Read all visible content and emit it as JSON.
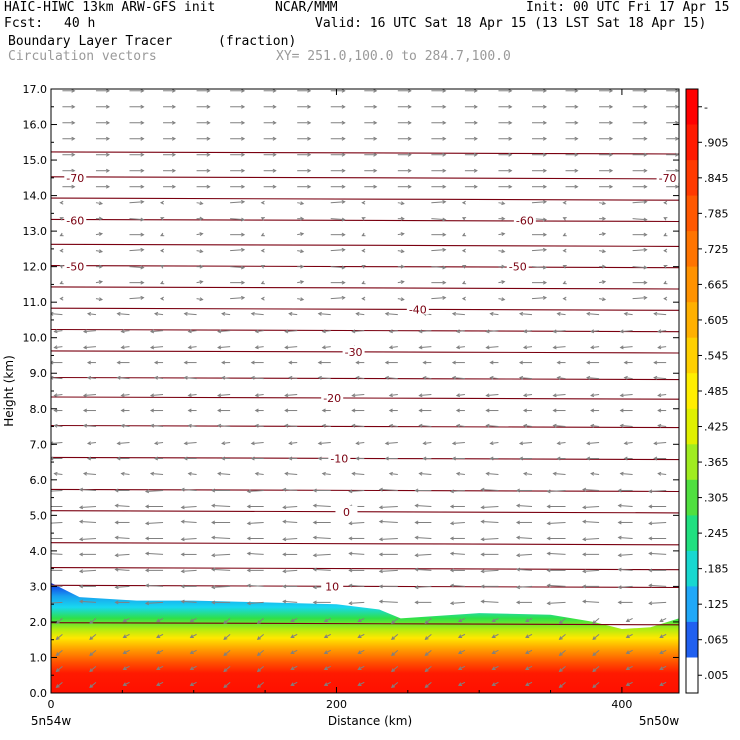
{
  "header": {
    "model_line": "HAIC-HIWC 13km ARW-GFS init",
    "org": "NCAR/MMM",
    "init": "Init: 00 UTC Fri 17 Apr 15",
    "fcst_label": "Fcst:",
    "fcst_value": "40 h",
    "valid": "Valid: 16 UTC Sat 18 Apr 15 (13 LST Sat 18 Apr 15)",
    "field": "Boundary Layer Tracer",
    "field_units": "(fraction)",
    "overlay": "Circulation vectors",
    "xy": "XY= 251.0,100.0 to 284.7,100.0"
  },
  "colors": {
    "fill_high": "#ff1a00",
    "fill_orange": "#ff7a00",
    "fill_yellow": "#ffe800",
    "fill_green": "#2ee04a",
    "fill_cyan": "#18d8f0",
    "fill_blue": "#1030e8",
    "contour": "#7a0010",
    "vector": "#808080"
  },
  "chart_data": {
    "type": "cross-section",
    "title": "Boundary Layer Tracer",
    "xlabel": "Distance (km)",
    "ylabel": "Height (km)",
    "xlim": [
      0,
      440
    ],
    "ylim": [
      0,
      17
    ],
    "x_ticks": [
      {
        "value": 0,
        "label": "0"
      },
      {
        "value": 200,
        "label": "200"
      },
      {
        "value": 400,
        "label": "400"
      }
    ],
    "y_ticks": [
      0,
      1,
      2,
      3,
      4,
      5,
      6,
      7,
      8,
      9,
      10,
      11,
      12,
      13,
      14,
      15,
      16,
      17
    ],
    "y_tick_labels": [
      "0.0",
      "1.0",
      "2.0",
      "3.0",
      "4.0",
      "5.0",
      "6.0",
      "7.0",
      "8.0",
      "9.0",
      "10.0",
      "11.0",
      "12.0",
      "13.0",
      "14.0",
      "15.0",
      "16.0",
      "17.0"
    ],
    "end_labels": {
      "left": "5n54w",
      "right": "5n50w"
    },
    "pbl_top": {
      "x": [
        0,
        20,
        60,
        100,
        150,
        200,
        230,
        245,
        300,
        350,
        380,
        400,
        420,
        440
      ],
      "y": [
        3.1,
        2.7,
        2.6,
        2.6,
        2.55,
        2.5,
        2.35,
        2.1,
        2.25,
        2.2,
        2.0,
        1.8,
        1.85,
        2.1
      ]
    },
    "colorbar": {
      "labels": [
        "-",
        ".905",
        ".845",
        ".785",
        ".725",
        ".665",
        ".605",
        ".545",
        ".485",
        ".425",
        ".365",
        ".305",
        ".245",
        ".185",
        ".125",
        ".065",
        ".005"
      ],
      "colors": [
        "#ff0000",
        "#ff1a00",
        "#ff3a00",
        "#ff5800",
        "#ff7400",
        "#ff9200",
        "#ffb000",
        "#ffd000",
        "#ffee00",
        "#e0f000",
        "#a0ec20",
        "#50e040",
        "#20e080",
        "#18d8d0",
        "#20a8f8",
        "#2060f0",
        "#ffffff"
      ]
    },
    "temperature_contours": [
      {
        "label": "10",
        "height": 3.0,
        "label_x": 190
      },
      {
        "label": "0",
        "height": 5.1,
        "label_x": 200
      },
      {
        "label": "-10",
        "height": 6.6,
        "label_x": 195
      },
      {
        "label": "-20",
        "height": 8.3,
        "label_x": 190
      },
      {
        "label": "-30",
        "height": 9.6,
        "label_x": 205
      },
      {
        "label": "-40",
        "height": 10.8,
        "label_x": 250
      },
      {
        "label": "-50",
        "height": 12.0,
        "label_x": 10,
        "label_x2": 320
      },
      {
        "label": "-60",
        "height": 13.3,
        "label_x": 10,
        "label_x2": 325
      },
      {
        "label": "-70",
        "height": 14.5,
        "label_x": 10,
        "label_x2": 425
      }
    ],
    "extra_contour_heights": [
      1.95,
      3.5,
      4.2,
      5.7,
      7.5,
      8.85,
      10.2,
      11.4,
      12.6,
      13.9,
      15.2
    ]
  }
}
